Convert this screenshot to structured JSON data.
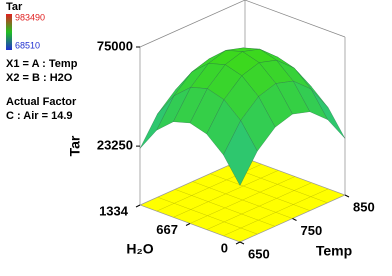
{
  "chart_data": {
    "type": "surface",
    "legend": {
      "title": "Tar",
      "max": 983490,
      "min": 68510,
      "max_color": "#e02020",
      "min_color": "#2030d0"
    },
    "factors": [
      "X1 = A : Temp",
      "X2 = B : H2O"
    ],
    "actual_factor_title": "Actual Factor",
    "actual_factor": "C : Air = 14.9",
    "xlabel": "Temp",
    "ylabel": "H₂O",
    "zlabel": "Tar",
    "xlim": [
      650,
      850
    ],
    "ylim": [
      0,
      1334
    ],
    "zlim": [
      -7500,
      75000
    ],
    "xticks": [
      650,
      750,
      850
    ],
    "yticks": [
      0,
      667,
      1334
    ],
    "zticks": [
      23250,
      75000
    ],
    "x": [
      650,
      683,
      717,
      750,
      783,
      817,
      850
    ],
    "y": [
      0,
      222,
      445,
      667,
      889,
      1112,
      1334
    ],
    "z": [
      [
        22000,
        35889,
        44222,
        47000,
        44222,
        35889,
        22000
      ],
      [
        34778,
        48667,
        57000,
        59778,
        57000,
        48667,
        34778
      ],
      [
        42444,
        56333,
        64666,
        67444,
        64666,
        56333,
        42444
      ],
      [
        45000,
        58889,
        67222,
        70000,
        67222,
        58889,
        45000
      ],
      [
        42444,
        56333,
        64666,
        67444,
        64666,
        56333,
        42444
      ],
      [
        34778,
        48667,
        57000,
        59778,
        57000,
        48667,
        34778
      ],
      [
        22000,
        35889,
        44222,
        47000,
        44222,
        35889,
        22000
      ]
    ],
    "surface_colors": [
      "#1fb4c8",
      "#3cd81c"
    ],
    "floor_color": "#ffff00"
  }
}
